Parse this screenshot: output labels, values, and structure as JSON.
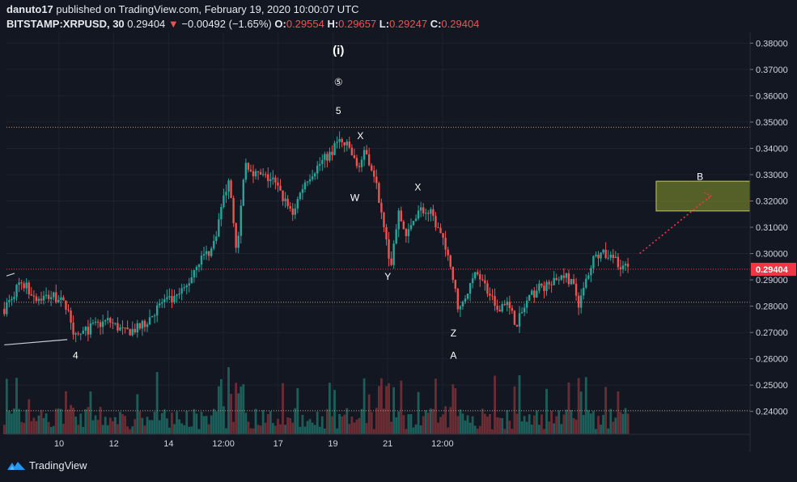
{
  "header": {
    "publisher": "danuto17",
    "published_text": "published on TradingView.com, February 19, 2020 10:00:07 UTC",
    "symbol": "BITSTAMP:XRPUSD, 30",
    "last": "0.29404",
    "change": "−0.00492 (−1.65%)",
    "ohlc": [
      {
        "label": "O:",
        "value": "0.29554"
      },
      {
        "label": "H:",
        "value": "0.29657"
      },
      {
        "label": "L:",
        "value": "0.29247"
      },
      {
        "label": "C:",
        "value": "0.29404"
      }
    ]
  },
  "footer": {
    "brand": "TradingView",
    "icon": "tradingview-logo-icon"
  },
  "colors": {
    "background": "#131722",
    "up": "#26a69a",
    "down": "#ef5350",
    "price_line": "#f23645",
    "level_line": "#b8956a",
    "target_box_fill": "#6b7a2a",
    "target_box_border": "#c5c86a",
    "grid": "#1e2230",
    "text": "#d1d4dc"
  },
  "chart_data": {
    "type": "candlestick",
    "x_ticks": [
      "10",
      "12",
      "14",
      "12:00",
      "17",
      "19",
      "21",
      "12:00"
    ],
    "y_ticks": [
      0.24,
      0.25,
      0.26,
      0.27,
      0.28,
      0.29,
      0.3,
      0.31,
      0.32,
      0.33,
      0.34,
      0.35,
      0.36,
      0.37,
      0.38
    ],
    "y_tick_labels": [
      "0.24000",
      "0.25000",
      "0.26000",
      "0.27000",
      "0.28000",
      "0.29000",
      "0.30000",
      "0.31000",
      "0.32000",
      "0.33000",
      "0.34000",
      "0.35000",
      "0.36000",
      "0.37000",
      "0.38000"
    ],
    "ylim": [
      0.2313,
      0.3841
    ],
    "xlim": [
      -1.0,
      13.5
    ],
    "grid": true,
    "price_path": [
      [
        -1.0,
        0.279
      ],
      [
        -0.7,
        0.2895
      ],
      [
        -0.4,
        0.283
      ],
      [
        -0.1,
        0.284
      ],
      [
        0.15,
        0.28
      ],
      [
        0.3,
        0.268
      ],
      [
        0.6,
        0.272
      ],
      [
        0.9,
        0.2745
      ],
      [
        1.2,
        0.27
      ],
      [
        1.5,
        0.272
      ],
      [
        1.9,
        0.282
      ],
      [
        2.1,
        0.282
      ],
      [
        2.35,
        0.288
      ],
      [
        2.5,
        0.296
      ],
      [
        2.8,
        0.302
      ],
      [
        3.0,
        0.32
      ],
      [
        3.1,
        0.33
      ],
      [
        3.25,
        0.3
      ],
      [
        3.4,
        0.335
      ],
      [
        3.6,
        0.33
      ],
      [
        3.9,
        0.328
      ],
      [
        4.25,
        0.315
      ],
      [
        4.5,
        0.328
      ],
      [
        4.8,
        0.335
      ],
      [
        5.0,
        0.339
      ],
      [
        5.1,
        0.343
      ],
      [
        5.3,
        0.34
      ],
      [
        5.45,
        0.332
      ],
      [
        5.6,
        0.339
      ],
      [
        5.75,
        0.33
      ],
      [
        5.85,
        0.32
      ],
      [
        5.95,
        0.31
      ],
      [
        6.05,
        0.295
      ],
      [
        6.2,
        0.315
      ],
      [
        6.35,
        0.306
      ],
      [
        6.55,
        0.317
      ],
      [
        6.8,
        0.315
      ],
      [
        7.0,
        0.305
      ],
      [
        7.15,
        0.295
      ],
      [
        7.3,
        0.278
      ],
      [
        7.5,
        0.288
      ],
      [
        7.65,
        0.293
      ],
      [
        7.8,
        0.287
      ],
      [
        8.0,
        0.279
      ],
      [
        8.15,
        0.282
      ],
      [
        8.35,
        0.273
      ],
      [
        8.55,
        0.282
      ],
      [
        8.75,
        0.287
      ],
      [
        9.0,
        0.288
      ],
      [
        9.2,
        0.293
      ],
      [
        9.4,
        0.287
      ],
      [
        9.5,
        0.28
      ],
      [
        9.65,
        0.292
      ],
      [
        9.75,
        0.298
      ],
      [
        9.9,
        0.3
      ],
      [
        10.1,
        0.298
      ],
      [
        10.4,
        0.294
      ]
    ],
    "horizontal_levels": [
      0.348,
      0.2815,
      0.2403
    ],
    "last_price": 0.29404,
    "last_price_label": "0.29404",
    "target_box": {
      "x": [
        10.9,
        12.8
      ],
      "y": [
        0.3162,
        0.3275
      ]
    },
    "projection": {
      "from": [
        10.6,
        0.3
      ],
      "to": [
        11.9,
        0.322
      ]
    },
    "trendline": {
      "from": [
        -1.0,
        0.2653
      ],
      "to": [
        0.15,
        0.2673
      ]
    },
    "wave_labels": [
      {
        "text": "(i)",
        "x": 5.1,
        "y": 0.377
      },
      {
        "text": "⑤",
        "x": 5.1,
        "y": 0.365
      },
      {
        "text": "5",
        "x": 5.1,
        "y": 0.354
      },
      {
        "text": "X",
        "x": 5.5,
        "y": 0.3445
      },
      {
        "text": "W",
        "x": 5.4,
        "y": 0.321
      },
      {
        "text": "X",
        "x": 6.55,
        "y": 0.325
      },
      {
        "text": "Y",
        "x": 6.0,
        "y": 0.291
      },
      {
        "text": "Z",
        "x": 7.2,
        "y": 0.2695
      },
      {
        "text": "A",
        "x": 7.2,
        "y": 0.261
      },
      {
        "text": "4",
        "x": 0.3,
        "y": 0.261
      },
      {
        "text": "B",
        "x": 11.7,
        "y": 0.329
      }
    ]
  }
}
